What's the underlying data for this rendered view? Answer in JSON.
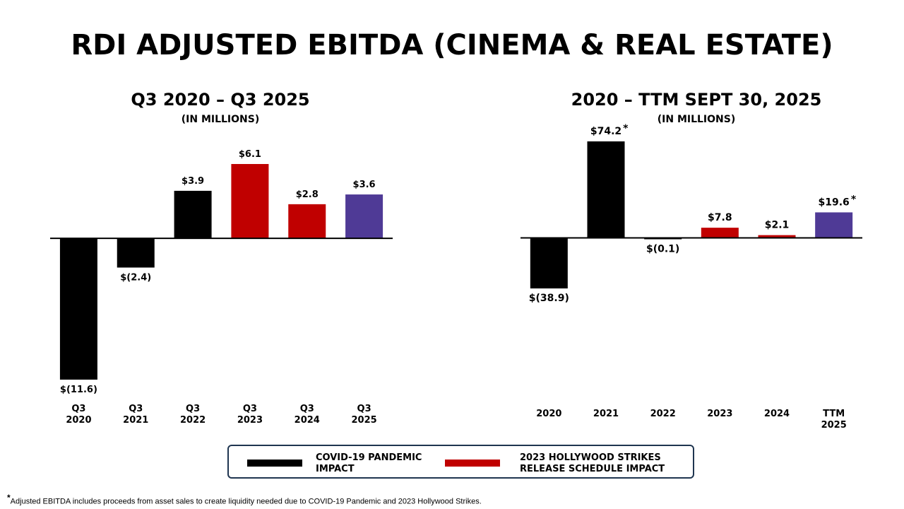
{
  "title": "RDI ADJUSTED EBITDA (CINEMA & REAL ESTATE)",
  "colors": {
    "covid": "#000000",
    "strike": "#c00000",
    "current": "#4f3a96",
    "axis": "#000000",
    "legend_border": "#1f3550"
  },
  "chart_data": [
    {
      "type": "bar",
      "title": "Q3 2020 – Q3 2025",
      "subtitle": "(IN MILLIONS)",
      "categories": [
        "Q3\n2020",
        "Q3\n2021",
        "Q3\n2022",
        "Q3\n2023",
        "Q3\n2024",
        "Q3\n2025"
      ],
      "values": [
        -11.6,
        -2.4,
        3.9,
        6.1,
        2.8,
        3.6
      ],
      "data_labels": [
        "$(11.6)",
        "$(2.4)",
        "$3.9",
        "$6.1",
        "$2.8",
        "$3.6"
      ],
      "bar_colors": [
        "covid",
        "covid",
        "covid",
        "strike",
        "strike",
        "current"
      ],
      "asterisk": [
        false,
        false,
        false,
        false,
        false,
        false
      ],
      "ylim": [
        -11.6,
        6.1
      ],
      "grid": false
    },
    {
      "type": "bar",
      "title": "2020 – TTM SEPT 30, 2025",
      "subtitle": "(IN MILLIONS)",
      "categories": [
        "2020",
        "2021",
        "2022",
        "2023",
        "2024",
        "TTM\n2025"
      ],
      "values": [
        -38.9,
        74.2,
        -0.1,
        7.8,
        2.1,
        19.6
      ],
      "data_labels": [
        "$(38.9)",
        "$74.2",
        "$(0.1)",
        "$7.8",
        "$2.1",
        "$19.6"
      ],
      "bar_colors": [
        "covid",
        "covid",
        "covid",
        "strike",
        "strike",
        "current"
      ],
      "asterisk": [
        false,
        true,
        false,
        false,
        false,
        true
      ],
      "ylim": [
        -38.9,
        74.2
      ],
      "grid": false
    }
  ],
  "legend": {
    "items": [
      {
        "label": "COVID-19 PANDEMIC\nIMPACT",
        "color": "covid"
      },
      {
        "label": "2023 HOLLYWOOD STRIKES\nRELEASE SCHEDULE IMPACT",
        "color": "strike"
      }
    ]
  },
  "footnote": {
    "marker": "*",
    "text": "Adjusted EBITDA includes proceeds from asset sales to create liquidity needed due to COVID-19 Pandemic and 2023 Hollywood Strikes."
  }
}
